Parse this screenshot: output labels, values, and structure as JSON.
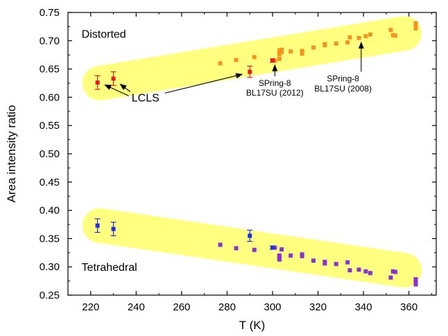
{
  "chart_data": {
    "type": "scatter",
    "title": "",
    "xlabel": "T (K)",
    "ylabel": "Area intensity ratio",
    "xlim": [
      210,
      372
    ],
    "ylim": [
      0.25,
      0.75
    ],
    "xticks": [
      220,
      240,
      260,
      280,
      300,
      320,
      340,
      360
    ],
    "yticks": [
      0.25,
      0.3,
      0.35,
      0.4,
      0.45,
      0.5,
      0.55,
      0.6,
      0.65,
      0.7,
      0.75
    ],
    "grid": false,
    "legend": "none",
    "colors": {
      "lcls_distorted": "#e8191e",
      "spring8_distorted": "#f5931f",
      "lcls_tetrahedral": "#1f2ee8",
      "spring8_tetrahedral": "#8b2fd9",
      "highlight_band": "#ffff80"
    },
    "bands": [
      {
        "label": "Distorted",
        "x": [
          224,
          358
        ],
        "y": [
          0.625,
          0.713
        ]
      },
      {
        "label": "Tetrahedral",
        "x": [
          224,
          358
        ],
        "y": [
          0.373,
          0.294
        ]
      }
    ],
    "series": [
      {
        "name": "LCLS (Distorted)",
        "marker": "square-errorbar",
        "points": [
          {
            "x": 223,
            "y": 0.626,
            "err": 0.012
          },
          {
            "x": 230,
            "y": 0.633,
            "err": 0.012
          },
          {
            "x": 290,
            "y": 0.645,
            "err": 0.01
          },
          {
            "x": 300,
            "y": 0.665,
            "err": 0.003
          }
        ]
      },
      {
        "name": "SPring-8 (Distorted)",
        "marker": "square",
        "points": [
          {
            "x": 277,
            "y": 0.66
          },
          {
            "x": 284,
            "y": 0.666
          },
          {
            "x": 292,
            "y": 0.671
          },
          {
            "x": 301,
            "y": 0.665
          },
          {
            "x": 303,
            "y": 0.668
          },
          {
            "x": 303,
            "y": 0.676
          },
          {
            "x": 303,
            "y": 0.683
          },
          {
            "x": 304,
            "y": 0.68
          },
          {
            "x": 304,
            "y": 0.684
          },
          {
            "x": 308,
            "y": 0.681
          },
          {
            "x": 313,
            "y": 0.677
          },
          {
            "x": 313,
            "y": 0.682
          },
          {
            "x": 318,
            "y": 0.688
          },
          {
            "x": 323,
            "y": 0.692
          },
          {
            "x": 323,
            "y": 0.694
          },
          {
            "x": 328,
            "y": 0.695
          },
          {
            "x": 333,
            "y": 0.697
          },
          {
            "x": 334,
            "y": 0.706
          },
          {
            "x": 338,
            "y": 0.705
          },
          {
            "x": 341,
            "y": 0.708
          },
          {
            "x": 343,
            "y": 0.711
          },
          {
            "x": 352,
            "y": 0.719
          },
          {
            "x": 353,
            "y": 0.71
          },
          {
            "x": 354,
            "y": 0.709
          },
          {
            "x": 363,
            "y": 0.722
          },
          {
            "x": 363,
            "y": 0.727
          },
          {
            "x": 363,
            "y": 0.731
          }
        ]
      },
      {
        "name": "LCLS (Tetrahedral)",
        "marker": "square-errorbar",
        "points": [
          {
            "x": 223,
            "y": 0.373,
            "err": 0.012
          },
          {
            "x": 230,
            "y": 0.367,
            "err": 0.012
          },
          {
            "x": 290,
            "y": 0.355,
            "err": 0.01
          },
          {
            "x": 300,
            "y": 0.334,
            "err": 0.003
          }
        ]
      },
      {
        "name": "SPring-8 (Tetrahedral)",
        "marker": "square",
        "points": [
          {
            "x": 277,
            "y": 0.339
          },
          {
            "x": 284,
            "y": 0.333
          },
          {
            "x": 292,
            "y": 0.33
          },
          {
            "x": 301,
            "y": 0.334
          },
          {
            "x": 303,
            "y": 0.32
          },
          {
            "x": 303,
            "y": 0.316
          },
          {
            "x": 303,
            "y": 0.313
          },
          {
            "x": 304,
            "y": 0.331
          },
          {
            "x": 308,
            "y": 0.32
          },
          {
            "x": 313,
            "y": 0.322
          },
          {
            "x": 313,
            "y": 0.319
          },
          {
            "x": 318,
            "y": 0.311
          },
          {
            "x": 323,
            "y": 0.309
          },
          {
            "x": 323,
            "y": 0.306
          },
          {
            "x": 328,
            "y": 0.305
          },
          {
            "x": 333,
            "y": 0.308
          },
          {
            "x": 334,
            "y": 0.294
          },
          {
            "x": 338,
            "y": 0.295
          },
          {
            "x": 341,
            "y": 0.292
          },
          {
            "x": 343,
            "y": 0.289
          },
          {
            "x": 352,
            "y": 0.281
          },
          {
            "x": 353,
            "y": 0.292
          },
          {
            "x": 354,
            "y": 0.291
          },
          {
            "x": 363,
            "y": 0.278
          },
          {
            "x": 363,
            "y": 0.273
          },
          {
            "x": 363,
            "y": 0.269
          }
        ]
      }
    ],
    "annotations": {
      "distorted": {
        "text": "Distorted",
        "x": 216,
        "y": 0.705
      },
      "tetrahedral": {
        "text": "Tetrahedral",
        "x": 216,
        "y": 0.293
      },
      "lcls": {
        "text": "LCLS",
        "x": 238,
        "y": 0.6,
        "targets": [
          [
            224,
            0.626
          ],
          [
            231,
            0.629
          ],
          [
            289,
            0.643
          ]
        ]
      },
      "spring8_2012": {
        "lines": [
          "SPring-8",
          "BL17SU (2012)"
        ],
        "x": 301,
        "y": 0.62,
        "y2": 0.603,
        "target": [
          301,
          0.662
        ]
      },
      "spring8_2008": {
        "lines": [
          "SPring-8",
          "BL17SU (2008)"
        ],
        "x": 331,
        "y": 0.628,
        "y2": 0.61,
        "target": [
          339,
          0.702
        ]
      }
    }
  }
}
